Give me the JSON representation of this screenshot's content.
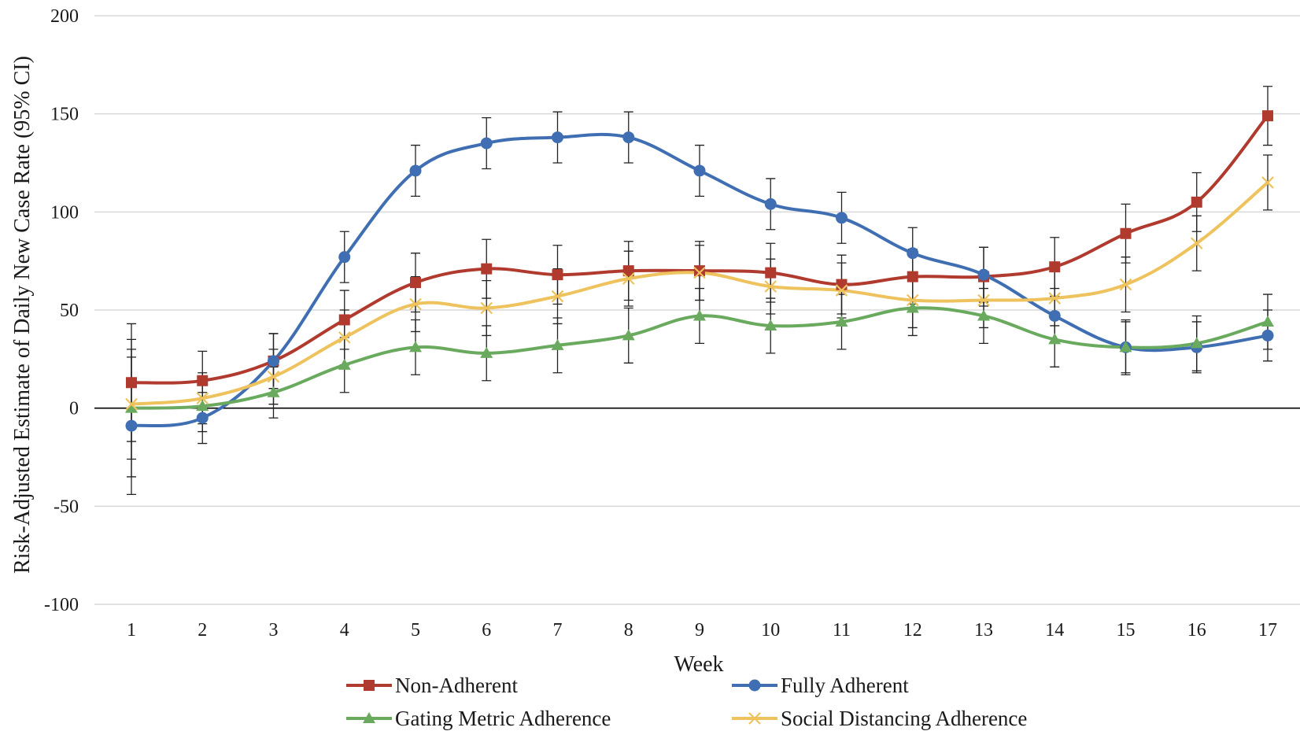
{
  "chart_data": {
    "type": "line",
    "title": "",
    "xlabel": "Week",
    "ylabel": "Risk-Adjusted Estimate of Daily New Case Rate (95% CI)",
    "ylim": [
      -100,
      200
    ],
    "yticks": [
      "200",
      "150",
      "100",
      "50",
      "0",
      "-50",
      "-100"
    ],
    "ytick_values": [
      200,
      150,
      100,
      50,
      0,
      -50,
      -100
    ],
    "x": [
      1,
      2,
      3,
      4,
      5,
      6,
      7,
      8,
      9,
      10,
      11,
      12,
      13,
      14,
      15,
      16,
      17
    ],
    "xticks": [
      "1",
      "2",
      "3",
      "4",
      "5",
      "6",
      "7",
      "8",
      "9",
      "10",
      "11",
      "12",
      "13",
      "14",
      "15",
      "16",
      "17"
    ],
    "grid": true,
    "legend_position": "bottom",
    "series": [
      {
        "name": "Non-Adherent",
        "color": "#b03a2e",
        "marker": "square",
        "values": [
          13,
          14,
          24,
          45,
          64,
          71,
          68,
          70,
          70,
          69,
          63,
          67,
          67,
          72,
          89,
          105,
          149
        ],
        "lower": [
          -17,
          -1,
          10,
          30,
          49,
          56,
          53,
          55,
          55,
          54,
          48,
          53,
          52,
          57,
          74,
          90,
          134
        ],
        "upper": [
          43,
          29,
          38,
          60,
          79,
          86,
          83,
          85,
          85,
          84,
          78,
          81,
          82,
          87,
          104,
          120,
          164
        ]
      },
      {
        "name": "Fully Adherent",
        "color": "#3f6fb2",
        "marker": "circle",
        "values": [
          -9,
          -5,
          24,
          77,
          121,
          135,
          138,
          138,
          121,
          104,
          97,
          79,
          68,
          47,
          31,
          31,
          37
        ],
        "lower": [
          -44,
          -18,
          10,
          64,
          108,
          122,
          125,
          125,
          108,
          91,
          84,
          66,
          54,
          33,
          17,
          18,
          24
        ],
        "upper": [
          26,
          8,
          38,
          90,
          134,
          148,
          151,
          151,
          134,
          117,
          110,
          92,
          82,
          61,
          45,
          44,
          50
        ]
      },
      {
        "name": "Gating Metric Adherence",
        "color": "#6aaa5e",
        "marker": "triangle",
        "values": [
          0,
          1,
          8,
          22,
          31,
          28,
          32,
          37,
          47,
          42,
          44,
          51,
          47,
          35,
          31,
          33,
          44
        ],
        "lower": [
          -35,
          -12,
          -5,
          8,
          17,
          14,
          18,
          23,
          33,
          28,
          30,
          37,
          33,
          21,
          18,
          19,
          30
        ],
        "upper": [
          35,
          14,
          21,
          36,
          45,
          42,
          46,
          51,
          61,
          56,
          58,
          65,
          61,
          49,
          44,
          47,
          58
        ]
      },
      {
        "name": "Social Distancing Adherence",
        "color": "#eec25c",
        "marker": "x",
        "values": [
          2,
          5,
          16,
          36,
          53,
          51,
          57,
          66,
          69,
          62,
          60,
          55,
          55,
          56,
          63,
          84,
          115
        ],
        "lower": [
          -26,
          -8,
          2,
          22,
          39,
          37,
          43,
          52,
          55,
          48,
          46,
          41,
          41,
          42,
          49,
          70,
          101
        ],
        "upper": [
          30,
          18,
          30,
          50,
          67,
          65,
          71,
          80,
          83,
          76,
          74,
          69,
          69,
          70,
          77,
          98,
          129
        ]
      }
    ]
  }
}
